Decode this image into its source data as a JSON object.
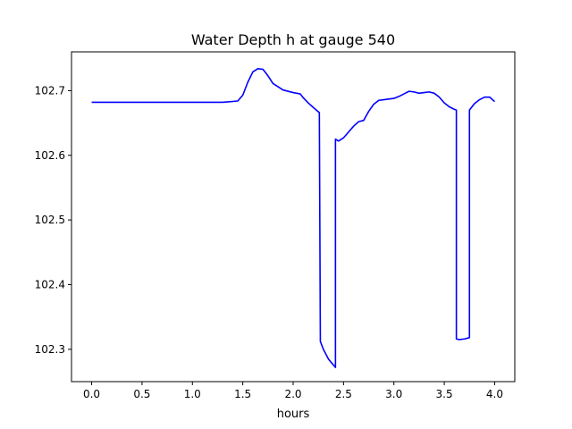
{
  "chart_data": {
    "type": "line",
    "title": "Water Depth h at gauge 540",
    "xlabel": "hours",
    "ylabel": "",
    "xlim": [
      -0.2,
      4.2
    ],
    "ylim": [
      102.25,
      102.76
    ],
    "grid": false,
    "xticks": [
      0.0,
      0.5,
      1.0,
      1.5,
      2.0,
      2.5,
      3.0,
      3.5,
      4.0
    ],
    "xtick_labels": [
      "0.0",
      "0.5",
      "1.0",
      "1.5",
      "2.0",
      "2.5",
      "3.0",
      "3.5",
      "4.0"
    ],
    "yticks": [
      102.3,
      102.4,
      102.5,
      102.6,
      102.7
    ],
    "ytick_labels": [
      "102.3",
      "102.4",
      "102.5",
      "102.6",
      "102.7"
    ],
    "series": [
      {
        "color": "#0000ff",
        "x": [
          0.0,
          0.5,
          1.0,
          1.3,
          1.45,
          1.5,
          1.55,
          1.6,
          1.65,
          1.7,
          1.75,
          1.8,
          1.9,
          2.0,
          2.07,
          2.1,
          2.15,
          2.2,
          2.26,
          2.27,
          2.3,
          2.35,
          2.42,
          2.42,
          2.45,
          2.5,
          2.55,
          2.6,
          2.65,
          2.7,
          2.75,
          2.8,
          2.85,
          2.9,
          3.0,
          3.05,
          3.1,
          3.15,
          3.2,
          3.25,
          3.3,
          3.35,
          3.4,
          3.45,
          3.5,
          3.55,
          3.6,
          3.62,
          3.62,
          3.65,
          3.7,
          3.75,
          3.75,
          3.8,
          3.85,
          3.9,
          3.95,
          4.0
        ],
        "y": [
          102.682,
          102.682,
          102.682,
          102.682,
          102.684,
          102.693,
          102.713,
          102.729,
          102.734,
          102.733,
          102.723,
          102.711,
          102.701,
          102.697,
          102.695,
          102.689,
          102.681,
          102.674,
          102.666,
          102.312,
          102.3,
          102.285,
          102.272,
          102.625,
          102.622,
          102.627,
          102.636,
          102.645,
          102.652,
          102.654,
          102.668,
          102.679,
          102.685,
          102.686,
          102.688,
          102.691,
          102.695,
          102.699,
          102.698,
          102.696,
          102.697,
          102.698,
          102.696,
          102.69,
          102.681,
          102.675,
          102.671,
          102.67,
          102.316,
          102.315,
          102.316,
          102.318,
          102.67,
          102.68,
          102.686,
          102.69,
          102.69,
          102.683
        ]
      }
    ]
  }
}
